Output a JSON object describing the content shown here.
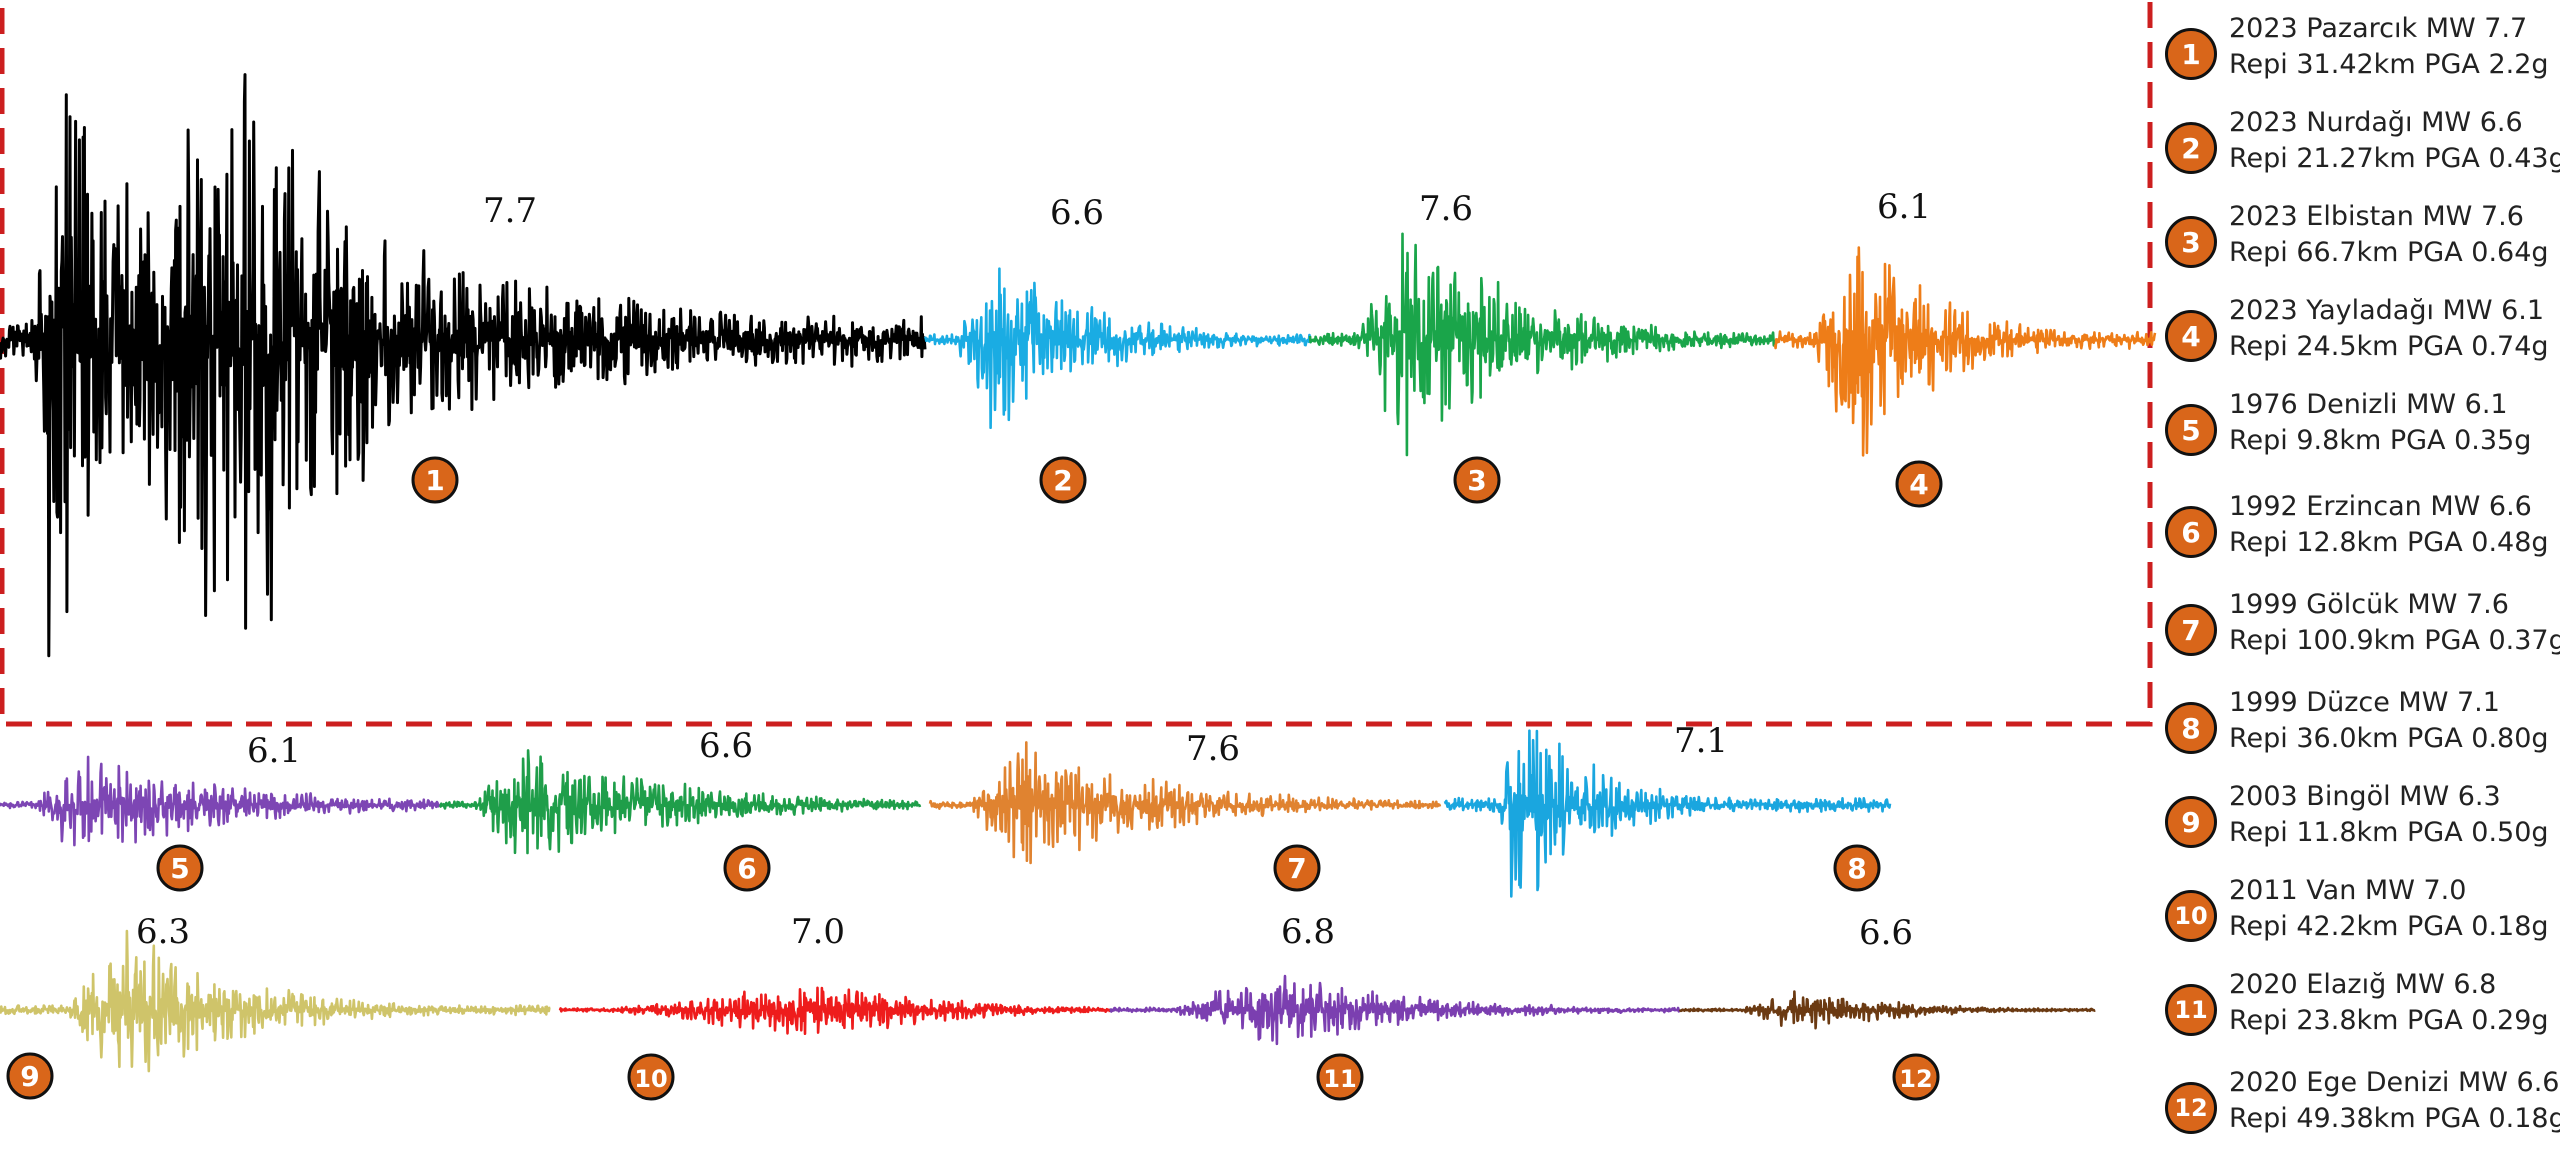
{
  "colors": {
    "badge_fill": "#d9661a",
    "frame": "#cc1f1f"
  },
  "chart_data": {
    "type": "line",
    "title": "",
    "xlabel": "",
    "ylabel": "",
    "grid": false,
    "legend_position": "right",
    "series": [
      {
        "id": 1,
        "name": "2023 Pazarcık MW 7.7",
        "detail": "Repi 31.42km PGA 2.2g",
        "magnitude": "7.7",
        "badge": "1",
        "color": "#000000",
        "pga": 2.2
      },
      {
        "id": 2,
        "name": "2023 Nurdağı MW 6.6",
        "detail": "Repi 21.27km PGA 0.43g",
        "magnitude": "6.6",
        "badge": "2",
        "color": "#1aace3",
        "pga": 0.43
      },
      {
        "id": 3,
        "name": "2023 Elbistan MW 7.6",
        "detail": "Repi 66.7km PGA 0.64g",
        "magnitude": "7.6",
        "badge": "3",
        "color": "#1aa54a",
        "pga": 0.64
      },
      {
        "id": 4,
        "name": "2023 Yayladağı MW 6.1",
        "detail": "Repi 24.5km PGA 0.74g",
        "magnitude": "6.1",
        "badge": "4",
        "color": "#ee7d18",
        "pga": 0.74
      },
      {
        "id": 5,
        "name": "1976 Denizli MW 6.1",
        "detail": "Repi 9.8km PGA 0.35g",
        "magnitude": "6.1",
        "badge": "5",
        "color": "#7d46b4",
        "pga": 0.35
      },
      {
        "id": 6,
        "name": "1992 Erzincan MW 6.6",
        "detail": "Repi 12.8km PGA 0.48g",
        "magnitude": "6.6",
        "badge": "6",
        "color": "#1f9e4a",
        "pga": 0.48
      },
      {
        "id": 7,
        "name": "1999 Gölcük MW 7.6",
        "detail": "Repi 100.9km PGA 0.37g",
        "magnitude": "7.6",
        "badge": "7",
        "color": "#e08330",
        "pga": 0.37
      },
      {
        "id": 8,
        "name": "1999  Düzce MW 7.1",
        "detail": "Repi 36.0km PGA 0.80g",
        "magnitude": "7.1",
        "badge": "8",
        "color": "#1aa6df",
        "pga": 0.8
      },
      {
        "id": 9,
        "name": "2003 Bingöl MW 6.3",
        "detail": "Repi 11.8km PGA 0.50g",
        "magnitude": "6.3",
        "badge": "9",
        "color": "#cfc46a",
        "pga": 0.5
      },
      {
        "id": 10,
        "name": "2011 Van MW 7.0",
        "detail": "Repi 42.2km PGA 0.18g",
        "magnitude": "7.0",
        "badge": "10",
        "color": "#ee1c1c",
        "pga": 0.18
      },
      {
        "id": 11,
        "name": "2020 Elazığ MW 6.8",
        "detail": "Repi 23.8km PGA 0.29g",
        "magnitude": "6.8",
        "badge": "11",
        "color": "#7b3fb0",
        "pga": 0.29
      },
      {
        "id": 12,
        "name": "2020 Ege Denizi MW 6.6",
        "detail": "Repi 49.38km PGA 0.18g",
        "magnitude": "6.6",
        "badge": "12",
        "color": "#6b3a12",
        "pga": 0.18
      }
    ]
  }
}
